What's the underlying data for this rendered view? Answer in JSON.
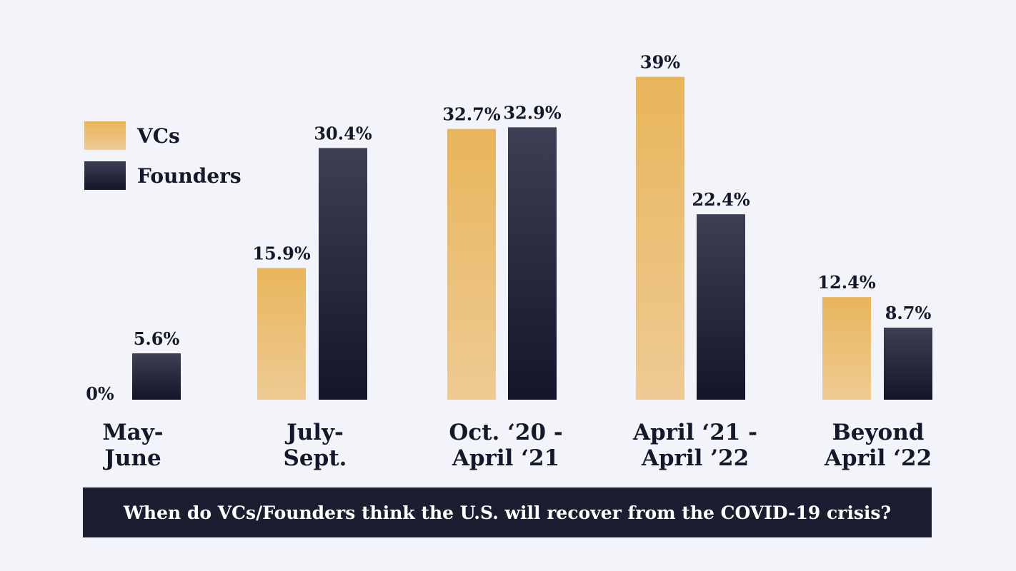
{
  "chart_data": {
    "type": "bar",
    "title": "When do VCs/Founders think the U.S. will recover from the COVID-19 crisis?",
    "categories": [
      [
        "May-",
        "June"
      ],
      [
        "July-",
        "Sept."
      ],
      [
        "Oct. ‘20 -",
        "April ‘21"
      ],
      [
        "April ‘21 -",
        "April ’22"
      ],
      [
        "Beyond",
        "April ‘22"
      ]
    ],
    "series": [
      {
        "name": "VCs",
        "values": [
          0,
          15.9,
          32.7,
          39,
          12.4
        ],
        "labels": [
          "0%",
          "15.9%",
          "32.7%",
          "39%",
          "12.4%"
        ],
        "color": "#e8b55a"
      },
      {
        "name": "Founders",
        "values": [
          5.6,
          30.4,
          32.9,
          22.4,
          8.7
        ],
        "labels": [
          "5.6%",
          "30.4%",
          "32.9%",
          "22.4%",
          "8.7%"
        ],
        "color": "#2a2c40"
      }
    ],
    "ylim": [
      0,
      40
    ],
    "grid": false,
    "legend": "top-left",
    "xlabel": "",
    "ylabel": ""
  }
}
